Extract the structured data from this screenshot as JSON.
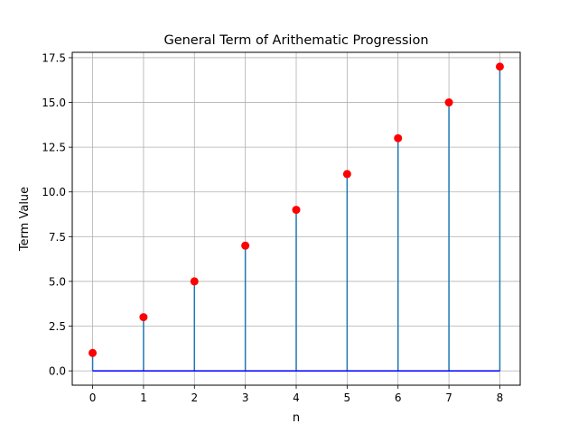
{
  "chart_data": {
    "type": "stem",
    "title": "General Term of Arithematic Progression",
    "xlabel": "n",
    "ylabel": "Term Value",
    "x": [
      0,
      1,
      2,
      3,
      4,
      5,
      6,
      7,
      8
    ],
    "values": [
      1,
      3,
      5,
      7,
      9,
      11,
      13,
      15,
      17
    ],
    "xlim": [
      -0.4,
      8.4
    ],
    "ylim": [
      -0.8,
      17.8
    ],
    "x_ticks": [
      0,
      1,
      2,
      3,
      4,
      5,
      6,
      7,
      8
    ],
    "y_ticks": [
      0,
      2.5,
      5,
      7.5,
      10,
      12.5,
      15,
      17.5
    ],
    "x_tick_labels": [
      "0",
      "1",
      "2",
      "3",
      "4",
      "5",
      "6",
      "7",
      "8"
    ],
    "y_tick_labels": [
      "0.0",
      "2.5",
      "5.0",
      "7.5",
      "10.0",
      "12.5",
      "15.0",
      "17.5"
    ],
    "grid": true,
    "baseline": 0,
    "colors": {
      "stem": "#1f77b4",
      "marker": "#ff0000",
      "baseline": "#0000ff",
      "grid": "#b0b0b0"
    }
  }
}
